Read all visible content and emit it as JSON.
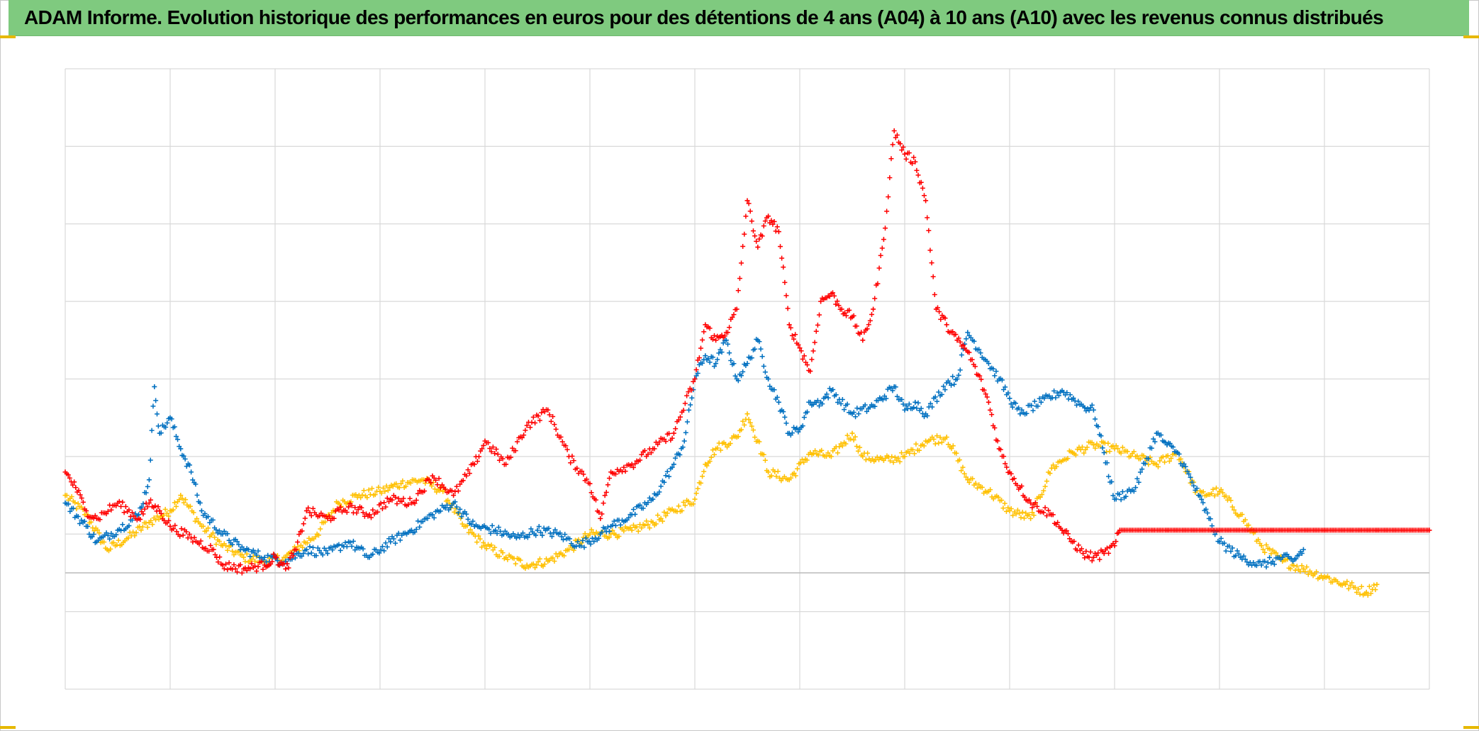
{
  "title": "ADAM Informe. Evolution historique des performances en euros pour des détentions de 4 ans (A04) à 10 ans (A10) avec les revenus connus distribués",
  "colors": {
    "title_background": "#7fca7f",
    "grid": "#d9d9d9",
    "corner_accent": "#e6b800"
  },
  "chart_data": {
    "type": "scatter",
    "title": "ADAM Informe. Evolution historique des performances en euros pour des détentions de 4 ans (A04) à 10 ans (A10) avec les revenus connus distribués",
    "xlabel": "",
    "ylabel": "",
    "xlim": [
      0,
      13
    ],
    "ylim": [
      -1.5,
      6.5
    ],
    "x_gridlines": 13,
    "y_gridlines": 8,
    "zero_line": 0,
    "grid": true,
    "tick_labels_visible": false,
    "marker": "+",
    "series": [
      {
        "color": "#ffc000",
        "points": [
          [
            0.0,
            1.0
          ],
          [
            0.2,
            0.75
          ],
          [
            0.4,
            0.3
          ],
          [
            0.6,
            0.45
          ],
          [
            0.8,
            0.65
          ],
          [
            1.0,
            0.8
          ],
          [
            1.1,
            1.0
          ],
          [
            1.3,
            0.6
          ],
          [
            1.5,
            0.35
          ],
          [
            1.7,
            0.2
          ],
          [
            1.9,
            0.15
          ],
          [
            2.1,
            0.2
          ],
          [
            2.2,
            0.3
          ],
          [
            2.4,
            0.5
          ],
          [
            2.6,
            0.9
          ],
          [
            2.8,
            1.0
          ],
          [
            3.0,
            1.05
          ],
          [
            3.2,
            1.15
          ],
          [
            3.4,
            1.2
          ],
          [
            3.6,
            1.05
          ],
          [
            3.8,
            0.6
          ],
          [
            4.0,
            0.35
          ],
          [
            4.2,
            0.2
          ],
          [
            4.4,
            0.1
          ],
          [
            4.6,
            0.15
          ],
          [
            4.8,
            0.3
          ],
          [
            5.0,
            0.5
          ],
          [
            5.2,
            0.5
          ],
          [
            5.4,
            0.55
          ],
          [
            5.6,
            0.65
          ],
          [
            5.8,
            0.8
          ],
          [
            6.0,
            0.95
          ],
          [
            6.1,
            1.4
          ],
          [
            6.2,
            1.6
          ],
          [
            6.4,
            1.75
          ],
          [
            6.5,
            2.05
          ],
          [
            6.6,
            1.7
          ],
          [
            6.7,
            1.3
          ],
          [
            6.9,
            1.2
          ],
          [
            7.1,
            1.55
          ],
          [
            7.3,
            1.5
          ],
          [
            7.5,
            1.8
          ],
          [
            7.6,
            1.5
          ],
          [
            7.8,
            1.45
          ],
          [
            8.0,
            1.5
          ],
          [
            8.2,
            1.7
          ],
          [
            8.4,
            1.75
          ],
          [
            8.6,
            1.2
          ],
          [
            8.8,
            1.05
          ],
          [
            9.0,
            0.8
          ],
          [
            9.2,
            0.7
          ],
          [
            9.4,
            1.35
          ],
          [
            9.6,
            1.55
          ],
          [
            9.8,
            1.65
          ],
          [
            10.0,
            1.6
          ],
          [
            10.2,
            1.5
          ],
          [
            10.4,
            1.4
          ],
          [
            10.6,
            1.55
          ],
          [
            10.8,
            1.0
          ],
          [
            11.0,
            1.05
          ],
          [
            11.2,
            0.75
          ],
          [
            11.4,
            0.35
          ],
          [
            11.6,
            0.15
          ],
          [
            11.8,
            0.05
          ],
          [
            12.0,
            -0.05
          ],
          [
            12.2,
            -0.15
          ],
          [
            12.4,
            -0.25
          ],
          [
            12.5,
            -0.15
          ]
        ]
      },
      {
        "color": "#0070c0",
        "points": [
          [
            0.0,
            0.9
          ],
          [
            0.2,
            0.6
          ],
          [
            0.3,
            0.4
          ],
          [
            0.5,
            0.55
          ],
          [
            0.7,
            0.75
          ],
          [
            0.8,
            1.2
          ],
          [
            0.85,
            2.4
          ],
          [
            0.9,
            1.8
          ],
          [
            1.0,
            2.0
          ],
          [
            1.1,
            1.6
          ],
          [
            1.2,
            1.3
          ],
          [
            1.3,
            0.8
          ],
          [
            1.5,
            0.5
          ],
          [
            1.7,
            0.3
          ],
          [
            1.9,
            0.2
          ],
          [
            2.1,
            0.15
          ],
          [
            2.3,
            0.3
          ],
          [
            2.5,
            0.25
          ],
          [
            2.7,
            0.4
          ],
          [
            2.9,
            0.2
          ],
          [
            3.1,
            0.4
          ],
          [
            3.3,
            0.55
          ],
          [
            3.5,
            0.75
          ],
          [
            3.7,
            0.9
          ],
          [
            3.9,
            0.6
          ],
          [
            4.1,
            0.55
          ],
          [
            4.3,
            0.45
          ],
          [
            4.5,
            0.55
          ],
          [
            4.7,
            0.5
          ],
          [
            4.9,
            0.35
          ],
          [
            5.1,
            0.5
          ],
          [
            5.2,
            0.6
          ],
          [
            5.4,
            0.75
          ],
          [
            5.6,
            0.95
          ],
          [
            5.8,
            1.4
          ],
          [
            5.9,
            1.7
          ],
          [
            6.0,
            2.5
          ],
          [
            6.1,
            2.8
          ],
          [
            6.2,
            2.7
          ],
          [
            6.3,
            3.0
          ],
          [
            6.4,
            2.5
          ],
          [
            6.5,
            2.7
          ],
          [
            6.6,
            3.0
          ],
          [
            6.7,
            2.5
          ],
          [
            6.8,
            2.2
          ],
          [
            6.9,
            1.8
          ],
          [
            7.0,
            1.85
          ],
          [
            7.1,
            2.2
          ],
          [
            7.2,
            2.2
          ],
          [
            7.3,
            2.35
          ],
          [
            7.5,
            2.05
          ],
          [
            7.7,
            2.15
          ],
          [
            7.9,
            2.4
          ],
          [
            8.0,
            2.1
          ],
          [
            8.1,
            2.2
          ],
          [
            8.2,
            2.05
          ],
          [
            8.4,
            2.45
          ],
          [
            8.5,
            2.5
          ],
          [
            8.6,
            3.1
          ],
          [
            8.8,
            2.7
          ],
          [
            8.9,
            2.5
          ],
          [
            9.0,
            2.25
          ],
          [
            9.1,
            2.05
          ],
          [
            9.3,
            2.2
          ],
          [
            9.5,
            2.35
          ],
          [
            9.7,
            2.15
          ],
          [
            9.8,
            2.1
          ],
          [
            9.9,
            1.55
          ],
          [
            10.0,
            0.95
          ],
          [
            10.2,
            1.1
          ],
          [
            10.4,
            1.8
          ],
          [
            10.5,
            1.65
          ],
          [
            10.6,
            1.55
          ],
          [
            10.8,
            1.0
          ],
          [
            10.9,
            0.7
          ],
          [
            11.0,
            0.4
          ],
          [
            11.2,
            0.2
          ],
          [
            11.4,
            0.1
          ],
          [
            11.6,
            0.2
          ],
          [
            11.7,
            0.15
          ],
          [
            11.8,
            0.3
          ]
        ]
      },
      {
        "color": "#ff0000",
        "points": [
          [
            0.0,
            1.3
          ],
          [
            0.1,
            1.1
          ],
          [
            0.2,
            0.8
          ],
          [
            0.3,
            0.7
          ],
          [
            0.5,
            0.9
          ],
          [
            0.7,
            0.7
          ],
          [
            0.8,
            0.9
          ],
          [
            0.9,
            0.8
          ],
          [
            1.0,
            0.6
          ],
          [
            1.2,
            0.45
          ],
          [
            1.4,
            0.3
          ],
          [
            1.5,
            0.1
          ],
          [
            1.7,
            0.05
          ],
          [
            1.9,
            0.1
          ],
          [
            2.0,
            0.2
          ],
          [
            2.1,
            0.05
          ],
          [
            2.2,
            0.3
          ],
          [
            2.3,
            0.8
          ],
          [
            2.5,
            0.7
          ],
          [
            2.7,
            0.85
          ],
          [
            2.9,
            0.75
          ],
          [
            3.1,
            0.95
          ],
          [
            3.3,
            0.9
          ],
          [
            3.5,
            1.25
          ],
          [
            3.7,
            1.0
          ],
          [
            3.9,
            1.4
          ],
          [
            4.0,
            1.7
          ],
          [
            4.2,
            1.4
          ],
          [
            4.4,
            1.9
          ],
          [
            4.6,
            2.1
          ],
          [
            4.8,
            1.5
          ],
          [
            5.0,
            1.15
          ],
          [
            5.1,
            0.7
          ],
          [
            5.2,
            1.3
          ],
          [
            5.4,
            1.4
          ],
          [
            5.6,
            1.6
          ],
          [
            5.8,
            1.8
          ],
          [
            6.0,
            2.5
          ],
          [
            6.1,
            3.2
          ],
          [
            6.2,
            3.0
          ],
          [
            6.3,
            3.1
          ],
          [
            6.4,
            3.4
          ],
          [
            6.5,
            4.8
          ],
          [
            6.6,
            4.2
          ],
          [
            6.7,
            4.6
          ],
          [
            6.8,
            4.4
          ],
          [
            6.9,
            3.2
          ],
          [
            7.0,
            2.9
          ],
          [
            7.1,
            2.6
          ],
          [
            7.2,
            3.5
          ],
          [
            7.3,
            3.6
          ],
          [
            7.4,
            3.4
          ],
          [
            7.5,
            3.3
          ],
          [
            7.6,
            3.0
          ],
          [
            7.7,
            3.4
          ],
          [
            7.8,
            4.3
          ],
          [
            7.9,
            5.7
          ],
          [
            8.0,
            5.4
          ],
          [
            8.1,
            5.3
          ],
          [
            8.2,
            4.8
          ],
          [
            8.3,
            3.4
          ],
          [
            8.4,
            3.2
          ],
          [
            8.5,
            3.0
          ],
          [
            8.6,
            2.85
          ],
          [
            8.7,
            2.55
          ],
          [
            8.8,
            2.2
          ],
          [
            8.9,
            1.6
          ],
          [
            9.0,
            1.3
          ],
          [
            9.1,
            1.1
          ],
          [
            9.2,
            0.9
          ],
          [
            9.4,
            0.75
          ],
          [
            9.5,
            0.55
          ],
          [
            9.6,
            0.4
          ],
          [
            9.7,
            0.25
          ],
          [
            9.8,
            0.2
          ],
          [
            9.9,
            0.25
          ],
          [
            10.0,
            0.35
          ],
          [
            10.05,
            0.55
          ],
          [
            10.5,
            0.55
          ],
          [
            11.0,
            0.55
          ],
          [
            11.5,
            0.55
          ],
          [
            12.0,
            0.55
          ],
          [
            12.5,
            0.55
          ],
          [
            13.0,
            0.55
          ]
        ]
      }
    ]
  }
}
